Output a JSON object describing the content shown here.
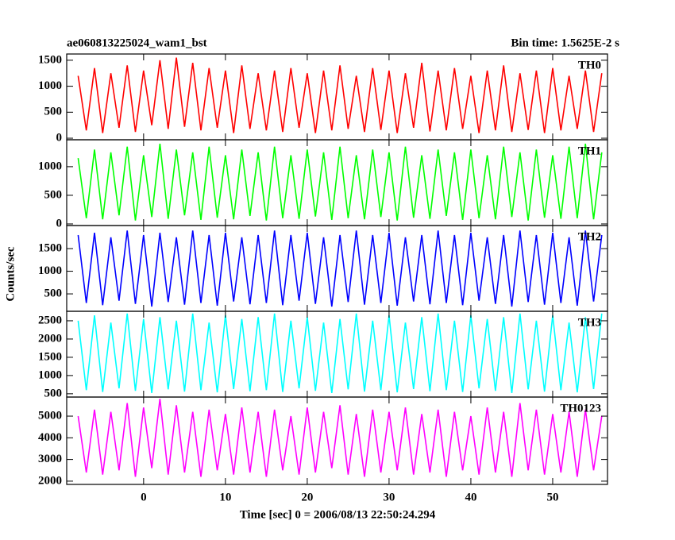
{
  "chart_data": {
    "type": "line",
    "title": "ae060813225024_wam1_bst",
    "subtitle": "Bin time: 1.5625E-2 s",
    "xlabel": "Time [sec] 0 = 2006/08/13 22:50:24.294",
    "ylabel": "Counts/sec",
    "xlim": [
      -9.4,
      56.7
    ],
    "xticks": [
      0,
      10,
      20,
      30,
      40,
      50
    ],
    "x": [
      -8,
      -7,
      -6,
      -5,
      -4,
      -3,
      -2,
      -1,
      0,
      1,
      2,
      3,
      4,
      5,
      6,
      7,
      8,
      9,
      10,
      11,
      12,
      13,
      14,
      15,
      16,
      17,
      18,
      19,
      20,
      21,
      22,
      23,
      24,
      25,
      26,
      27,
      28,
      29,
      30,
      31,
      32,
      33,
      34,
      35,
      36,
      37,
      38,
      39,
      40,
      41,
      42,
      43,
      44,
      45,
      46,
      47,
      48,
      49,
      50,
      51,
      52,
      53,
      54,
      55,
      56
    ],
    "series": [
      {
        "name": "TH0",
        "color": "#ff0000",
        "ylim": [
          -30,
          1620
        ],
        "yticks": [
          0,
          500,
          1000,
          1500
        ],
        "values": [
          1200,
          150,
          1350,
          100,
          1250,
          200,
          1400,
          120,
          1300,
          250,
          1500,
          180,
          1550,
          220,
          1450,
          150,
          1350,
          200,
          1300,
          100,
          1400,
          180,
          1250,
          150,
          1300,
          120,
          1350,
          200,
          1250,
          100,
          1300,
          150,
          1400,
          180,
          1200,
          120,
          1350,
          160,
          1300,
          100,
          1250,
          200,
          1450,
          130,
          1300,
          150,
          1350,
          180,
          1200,
          100,
          1300,
          150,
          1400,
          120,
          1250,
          160,
          1300,
          100,
          1350,
          150,
          1200,
          180,
          1300,
          120,
          1250
        ]
      },
      {
        "name": "TH1",
        "color": "#00ff00",
        "ylim": [
          -28,
          1470
        ],
        "yticks": [
          0,
          500,
          1000
        ],
        "values": [
          1150,
          100,
          1300,
          80,
          1250,
          150,
          1350,
          60,
          1200,
          120,
          1400,
          90,
          1300,
          150,
          1250,
          70,
          1350,
          110,
          1200,
          80,
          1300,
          140,
          1250,
          60,
          1350,
          100,
          1200,
          90,
          1300,
          130,
          1250,
          70,
          1350,
          100,
          1200,
          80,
          1300,
          120,
          1250,
          60,
          1350,
          110,
          1200,
          90,
          1300,
          140,
          1250,
          70,
          1300,
          100,
          1200,
          80,
          1350,
          120,
          1250,
          60,
          1300,
          110,
          1200,
          90,
          1350,
          100,
          1400,
          80,
          1250
        ]
      },
      {
        "name": "TH2",
        "color": "#0000ff",
        "ylim": [
          115,
          2010
        ],
        "yticks": [
          500,
          1000,
          1500
        ],
        "values": [
          1800,
          300,
          1850,
          250,
          1750,
          350,
          1900,
          280,
          1800,
          220,
          1850,
          320,
          1750,
          260,
          1900,
          300,
          1800,
          240,
          1850,
          330,
          1750,
          270,
          1800,
          300,
          1900,
          250,
          1800,
          350,
          1850,
          280,
          1750,
          220,
          1800,
          320,
          1900,
          260,
          1800,
          300,
          1850,
          240,
          1750,
          330,
          1800,
          270,
          1900,
          300,
          1800,
          250,
          1850,
          350,
          1750,
          280,
          1800,
          220,
          1900,
          320,
          1800,
          260,
          1850,
          300,
          1750,
          240,
          1900,
          330,
          1800
        ]
      },
      {
        "name": "TH3",
        "color": "#00ffff",
        "ylim": [
          410,
          2760
        ],
        "yticks": [
          500,
          1000,
          1500,
          2000,
          2500
        ],
        "values": [
          2500,
          600,
          2650,
          550,
          2450,
          650,
          2700,
          580,
          2550,
          520,
          2600,
          620,
          2500,
          560,
          2700,
          600,
          2450,
          540,
          2650,
          630,
          2550,
          570,
          2600,
          600,
          2700,
          550,
          2500,
          650,
          2600,
          580,
          2450,
          520,
          2550,
          620,
          2700,
          560,
          2500,
          600,
          2650,
          540,
          2450,
          630,
          2600,
          570,
          2700,
          600,
          2500,
          550,
          2650,
          650,
          2550,
          580,
          2600,
          520,
          2700,
          620,
          2500,
          560,
          2650,
          600,
          2450,
          540,
          2600,
          630,
          2700
        ]
      },
      {
        "name": "TH0123",
        "color": "#ff00ff",
        "ylim": [
          1850,
          5880
        ],
        "yticks": [
          2000,
          3000,
          4000,
          5000
        ],
        "values": [
          5000,
          2400,
          5300,
          2300,
          5200,
          2500,
          5600,
          2200,
          5400,
          2600,
          5800,
          2300,
          5500,
          2400,
          5200,
          2200,
          5300,
          2500,
          5100,
          2300,
          5400,
          2400,
          5200,
          2200,
          5300,
          2500,
          5000,
          2300,
          5400,
          2400,
          5200,
          2600,
          5500,
          2300,
          5100,
          2200,
          5300,
          2400,
          5200,
          2500,
          5400,
          2300,
          5100,
          2400,
          5300,
          2200,
          5200,
          2500,
          5000,
          2300,
          5400,
          2400,
          5200,
          2200,
          5600,
          2500,
          5300,
          2300,
          5100,
          2400,
          5200,
          2200,
          5300,
          2500,
          5000
        ]
      }
    ]
  }
}
